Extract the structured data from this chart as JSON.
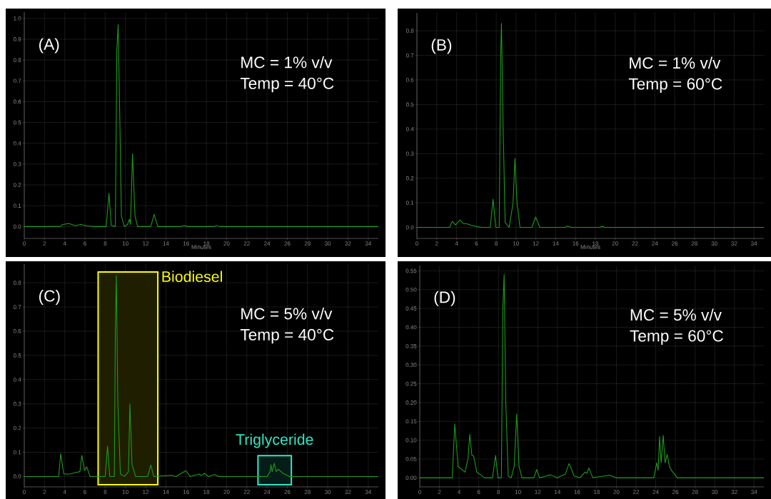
{
  "chart_data": [
    {
      "type": "line",
      "title": "(A)",
      "annotations": [
        "MC = 1% v/v",
        "Temp = 40°C"
      ],
      "xlabel": "Minutes",
      "grid": true,
      "xlim": [
        0,
        35
      ],
      "ylim": [
        -0.057,
        1.03
      ],
      "xticks": [
        0,
        2,
        4,
        6,
        8,
        10,
        12,
        14,
        16,
        18,
        20,
        22,
        24,
        26,
        28,
        30,
        32,
        34
      ],
      "yticks": [
        {
          "value": 0,
          "label": "0.0"
        },
        0.1,
        0.2,
        0.3,
        0.4,
        0.5,
        0.6,
        0.7,
        0.8,
        0.9,
        {
          "value": 1,
          "label": "1.0"
        }
      ],
      "series": [
        {
          "color": "#1e9e1e",
          "x": [
            0,
            3.5,
            3.8,
            4.4,
            5.0,
            5.6,
            6.2,
            7.0,
            8.1,
            8.37,
            8.6,
            9.0,
            9.15,
            9.28,
            9.45,
            9.6,
            9.9,
            10.2,
            10.4,
            10.5,
            10.7,
            10.95,
            11.2,
            12.5,
            12.84,
            13.2,
            15.5,
            15.8,
            16.2,
            18.8,
            19.0,
            19.3,
            35
          ],
          "values": [
            0,
            0,
            0.01,
            0.015,
            0.005,
            0.01,
            0.003,
            0,
            0,
            0.16,
            0.005,
            0,
            0.85,
            0.97,
            0.5,
            0.05,
            0,
            0.01,
            0.035,
            0.01,
            0.35,
            0.05,
            0,
            0,
            0.058,
            0,
            0,
            0.005,
            0,
            0,
            0.006,
            0,
            0
          ]
        }
      ]
    },
    {
      "type": "line",
      "title": "(B)",
      "annotations": [
        "MC = 1% v/v",
        "Temp = 60°C"
      ],
      "xlabel": "Minutes",
      "grid": true,
      "xlim": [
        0,
        35
      ],
      "ylim": [
        -0.045,
        0.873
      ],
      "xticks": [
        0,
        2,
        4,
        6,
        8,
        10,
        12,
        14,
        16,
        18,
        20,
        22,
        24,
        26,
        28,
        30,
        32,
        34
      ],
      "yticks": [
        {
          "value": 0,
          "label": "0.0"
        },
        0.1,
        0.2,
        0.3,
        0.4,
        0.5,
        0.6,
        0.7,
        0.8
      ],
      "series": [
        {
          "color": "#1e9e1e",
          "x": [
            0,
            3.3,
            3.56,
            3.9,
            4.34,
            4.7,
            5.0,
            5.5,
            6.5,
            7.4,
            7.68,
            7.95,
            8.3,
            8.45,
            8.53,
            8.7,
            8.9,
            9.3,
            9.7,
            9.89,
            10.1,
            10.4,
            11.6,
            11.98,
            12.4,
            14.9,
            15.2,
            15.6,
            18.4,
            18.7,
            19.0,
            35
          ],
          "values": [
            0,
            0,
            0.025,
            0.01,
            0.03,
            0.015,
            0.015,
            0.008,
            0,
            0,
            0.115,
            0,
            0,
            0.7,
            0.83,
            0.4,
            0.02,
            0,
            0.1,
            0.28,
            0.1,
            0,
            0,
            0.042,
            0,
            0,
            0.005,
            0,
            0,
            0.004,
            0,
            0
          ]
        }
      ]
    },
    {
      "type": "line",
      "title": "(C)",
      "annotations": [
        "MC = 5% v/v",
        "Temp = 40°C"
      ],
      "grid": true,
      "xlim": [
        0,
        35
      ],
      "ylim": [
        -0.043,
        0.877
      ],
      "xticks": [
        0,
        2,
        4,
        6,
        8,
        10,
        12,
        14,
        16,
        18,
        20,
        22,
        24,
        26,
        28,
        30,
        32,
        34
      ],
      "yticks": [
        {
          "value": 0,
          "label": "0.0"
        },
        0.1,
        0.2,
        0.3,
        0.4,
        0.5,
        0.6,
        0.7,
        0.8
      ],
      "bands": [
        {
          "axis": "x",
          "from": 7.3,
          "to": 13.2,
          "label": "Biodiesel",
          "color": "#ffff00"
        },
        {
          "axis": "x",
          "from": 23.1,
          "to": 26.4,
          "label": "Triglyceride",
          "color": "#33e6c4"
        }
      ],
      "series": [
        {
          "color": "#1e9e1e",
          "x": [
            0,
            3.4,
            3.6,
            3.9,
            4.5,
            5.0,
            5.5,
            5.69,
            5.95,
            6.17,
            6.5,
            7.5,
            8.0,
            8.23,
            8.45,
            8.9,
            9.0,
            9.1,
            9.25,
            9.5,
            9.9,
            10.2,
            10.3,
            10.44,
            10.65,
            11.0,
            12.2,
            12.51,
            12.8,
            14.5,
            15.0,
            15.97,
            16.4,
            17.3,
            17.5,
            17.8,
            18.2,
            18.8,
            19.2,
            24.0,
            24.3,
            24.38,
            24.5,
            24.72,
            24.9,
            25.1,
            25.6,
            26.2,
            35
          ],
          "values": [
            0,
            0,
            0.094,
            0.01,
            0.01,
            0.015,
            0.02,
            0.087,
            0.025,
            0.04,
            0,
            0,
            0,
            0.125,
            0,
            0,
            0.6,
            0.83,
            0.3,
            0.01,
            0,
            0.015,
            0.02,
            0.3,
            0.05,
            0,
            0,
            0.047,
            0,
            0.005,
            0,
            0.024,
            0,
            0.01,
            0.004,
            0.013,
            0,
            0.008,
            0,
            0,
            0.02,
            0.048,
            0.02,
            0.055,
            0.02,
            0.03,
            0.012,
            0,
            0
          ]
        }
      ]
    },
    {
      "type": "line",
      "title": "(D)",
      "annotations": [
        "MC = 5% v/v",
        "Temp = 60°C"
      ],
      "grid": true,
      "xlim": [
        0,
        35
      ],
      "ylim": [
        -0.024,
        0.564
      ],
      "xticks": [
        0,
        2,
        4,
        6,
        8,
        10,
        12,
        14,
        16,
        18,
        20,
        22,
        24,
        26,
        28,
        30,
        32,
        34
      ],
      "yticks": [
        {
          "value": 0,
          "label": "0.00"
        },
        {
          "value": 0.05,
          "label": "0.05"
        },
        {
          "value": 0.1,
          "label": "0.10"
        },
        {
          "value": 0.15,
          "label": "0.15"
        },
        {
          "value": 0.2,
          "label": "0.20"
        },
        {
          "value": 0.25,
          "label": "0.25"
        },
        {
          "value": 0.3,
          "label": "0.30"
        },
        {
          "value": 0.35,
          "label": "0.35"
        },
        {
          "value": 0.4,
          "label": "0.40"
        },
        {
          "value": 0.45,
          "label": "0.45"
        },
        {
          "value": 0.5,
          "label": "0.50"
        },
        {
          "value": 0.55,
          "label": "0.55"
        }
      ],
      "series": [
        {
          "color": "#1e9e1e",
          "x": [
            0,
            3.3,
            3.56,
            3.9,
            4.6,
            4.9,
            5.09,
            5.3,
            5.47,
            5.8,
            6.1,
            6.6,
            7.4,
            7.71,
            7.95,
            8.3,
            8.45,
            8.58,
            8.75,
            9.0,
            9.3,
            9.6,
            9.86,
            10.1,
            10.4,
            11.6,
            11.89,
            12.2,
            13.3,
            14.0,
            14.8,
            15.19,
            15.7,
            16.3,
            16.8,
            17.0,
            17.2,
            17.6,
            18.5,
            19.3,
            20.0,
            23.8,
            24.1,
            24.25,
            24.39,
            24.55,
            24.76,
            24.95,
            25.16,
            25.4,
            25.6,
            26.2,
            35
          ],
          "values": [
            0,
            0,
            0.143,
            0.03,
            0.015,
            0.05,
            0.116,
            0.06,
            0.058,
            0.015,
            0.01,
            0,
            0,
            0.06,
            0,
            0,
            0.45,
            0.54,
            0.2,
            0.005,
            0,
            0.03,
            0.17,
            0.03,
            0,
            0,
            0.022,
            0,
            0.008,
            0,
            0.01,
            0.038,
            0.005,
            0,
            0.015,
            0.012,
            0.026,
            0,
            0.004,
            0.007,
            0,
            0,
            0.04,
            0.02,
            0.11,
            0.04,
            0.113,
            0.04,
            0.062,
            0.03,
            0.02,
            0,
            0
          ]
        }
      ]
    }
  ]
}
